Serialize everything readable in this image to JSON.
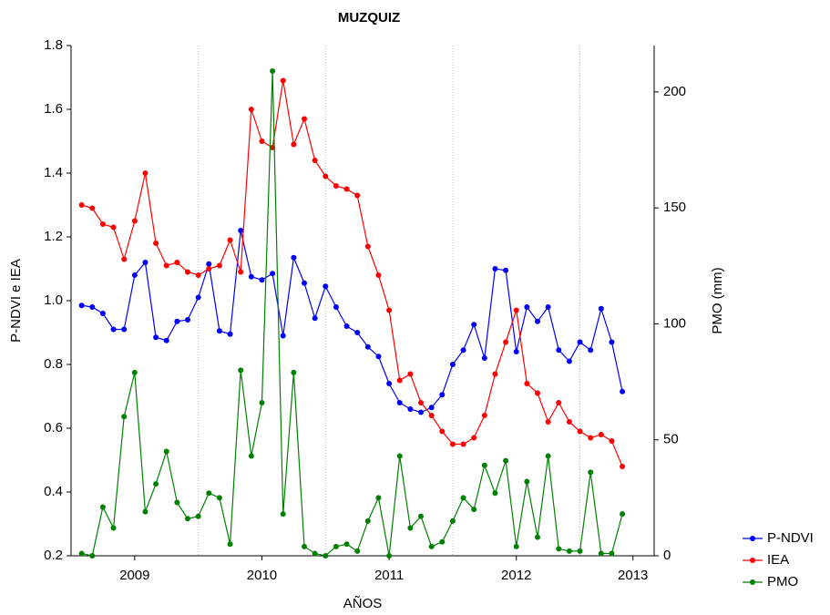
{
  "chart_data": {
    "type": "line",
    "title": "MUZQUIZ",
    "x_label": "AÑOS",
    "y_label": "P-NDVI e IEA",
    "y2_label": "PMO (mm)",
    "x": [
      1,
      2,
      3,
      4,
      5,
      6,
      7,
      8,
      9,
      10,
      11,
      12,
      13,
      14,
      15,
      16,
      17,
      18,
      19,
      20,
      21,
      22,
      23,
      24,
      25,
      26,
      27,
      28,
      29,
      30,
      31,
      32,
      33,
      34,
      35,
      36,
      37,
      38,
      39,
      40,
      41,
      42,
      43,
      44,
      45,
      46,
      47,
      48,
      49,
      50,
      51,
      52
    ],
    "xlim": [
      0,
      55
    ],
    "xticks": [
      {
        "value": 6,
        "label": "2009"
      },
      {
        "value": 18,
        "label": "2010"
      },
      {
        "value": 30,
        "label": "2011"
      },
      {
        "value": 42,
        "label": "2012"
      },
      {
        "value": 53,
        "label": "2013"
      }
    ],
    "xgrid": [
      12,
      24,
      36,
      48
    ],
    "ylim": [
      0.2,
      1.8
    ],
    "yticks": [
      0.2,
      0.4,
      0.6,
      0.8,
      {
        "value": 1.0,
        "label": "1.0"
      },
      1.2,
      1.4,
      1.6,
      1.8
    ],
    "y2lim": [
      0,
      220
    ],
    "y2ticks": [
      0,
      50,
      100,
      150,
      200
    ],
    "legend": "lower-right",
    "series": [
      {
        "name": "P-NDVI",
        "color": "#0000ff",
        "values": [
          0.985,
          0.98,
          0.96,
          0.91,
          0.91,
          1.08,
          1.12,
          0.885,
          0.875,
          0.935,
          0.94,
          1.01,
          1.115,
          0.905,
          0.895,
          1.22,
          1.075,
          1.065,
          1.085,
          0.89,
          1.135,
          1.055,
          0.945,
          1.045,
          0.98,
          0.92,
          0.9,
          0.855,
          0.825,
          0.74,
          0.68,
          0.66,
          0.65,
          0.665,
          0.705,
          0.8,
          0.845,
          0.925,
          0.82,
          1.1,
          1.095,
          0.84,
          0.98,
          0.935,
          0.98,
          0.845,
          0.81,
          0.87,
          0.845,
          0.975,
          0.87,
          0.715
        ]
      },
      {
        "name": "IEA",
        "color": "#ff0000",
        "values": [
          1.3,
          1.29,
          1.24,
          1.23,
          1.13,
          1.25,
          1.4,
          1.18,
          1.11,
          1.12,
          1.09,
          1.08,
          1.1,
          1.11,
          1.19,
          1.09,
          1.6,
          1.5,
          1.48,
          1.69,
          1.49,
          1.57,
          1.44,
          1.39,
          1.36,
          1.35,
          1.33,
          1.17,
          1.08,
          0.97,
          0.75,
          0.77,
          0.68,
          0.64,
          0.59,
          0.55,
          0.55,
          0.57,
          0.64,
          0.77,
          0.87,
          0.97,
          0.74,
          0.71,
          0.62,
          0.68,
          0.62,
          0.59,
          0.57,
          0.58,
          0.56,
          0.48
        ]
      },
      {
        "name": "PMO",
        "color": "#008000",
        "axis": "y2",
        "values": [
          1,
          0,
          21,
          12,
          60,
          79,
          19,
          31,
          45,
          23,
          16,
          17,
          27,
          25,
          5,
          80,
          43,
          66,
          209,
          18,
          79,
          4,
          1,
          0,
          4,
          5,
          2,
          15,
          25,
          0,
          43,
          12,
          17,
          4,
          6,
          15,
          25,
          20,
          39,
          27,
          41,
          4,
          32,
          8,
          43,
          3,
          2,
          2,
          36,
          1,
          1,
          18
        ]
      }
    ]
  }
}
